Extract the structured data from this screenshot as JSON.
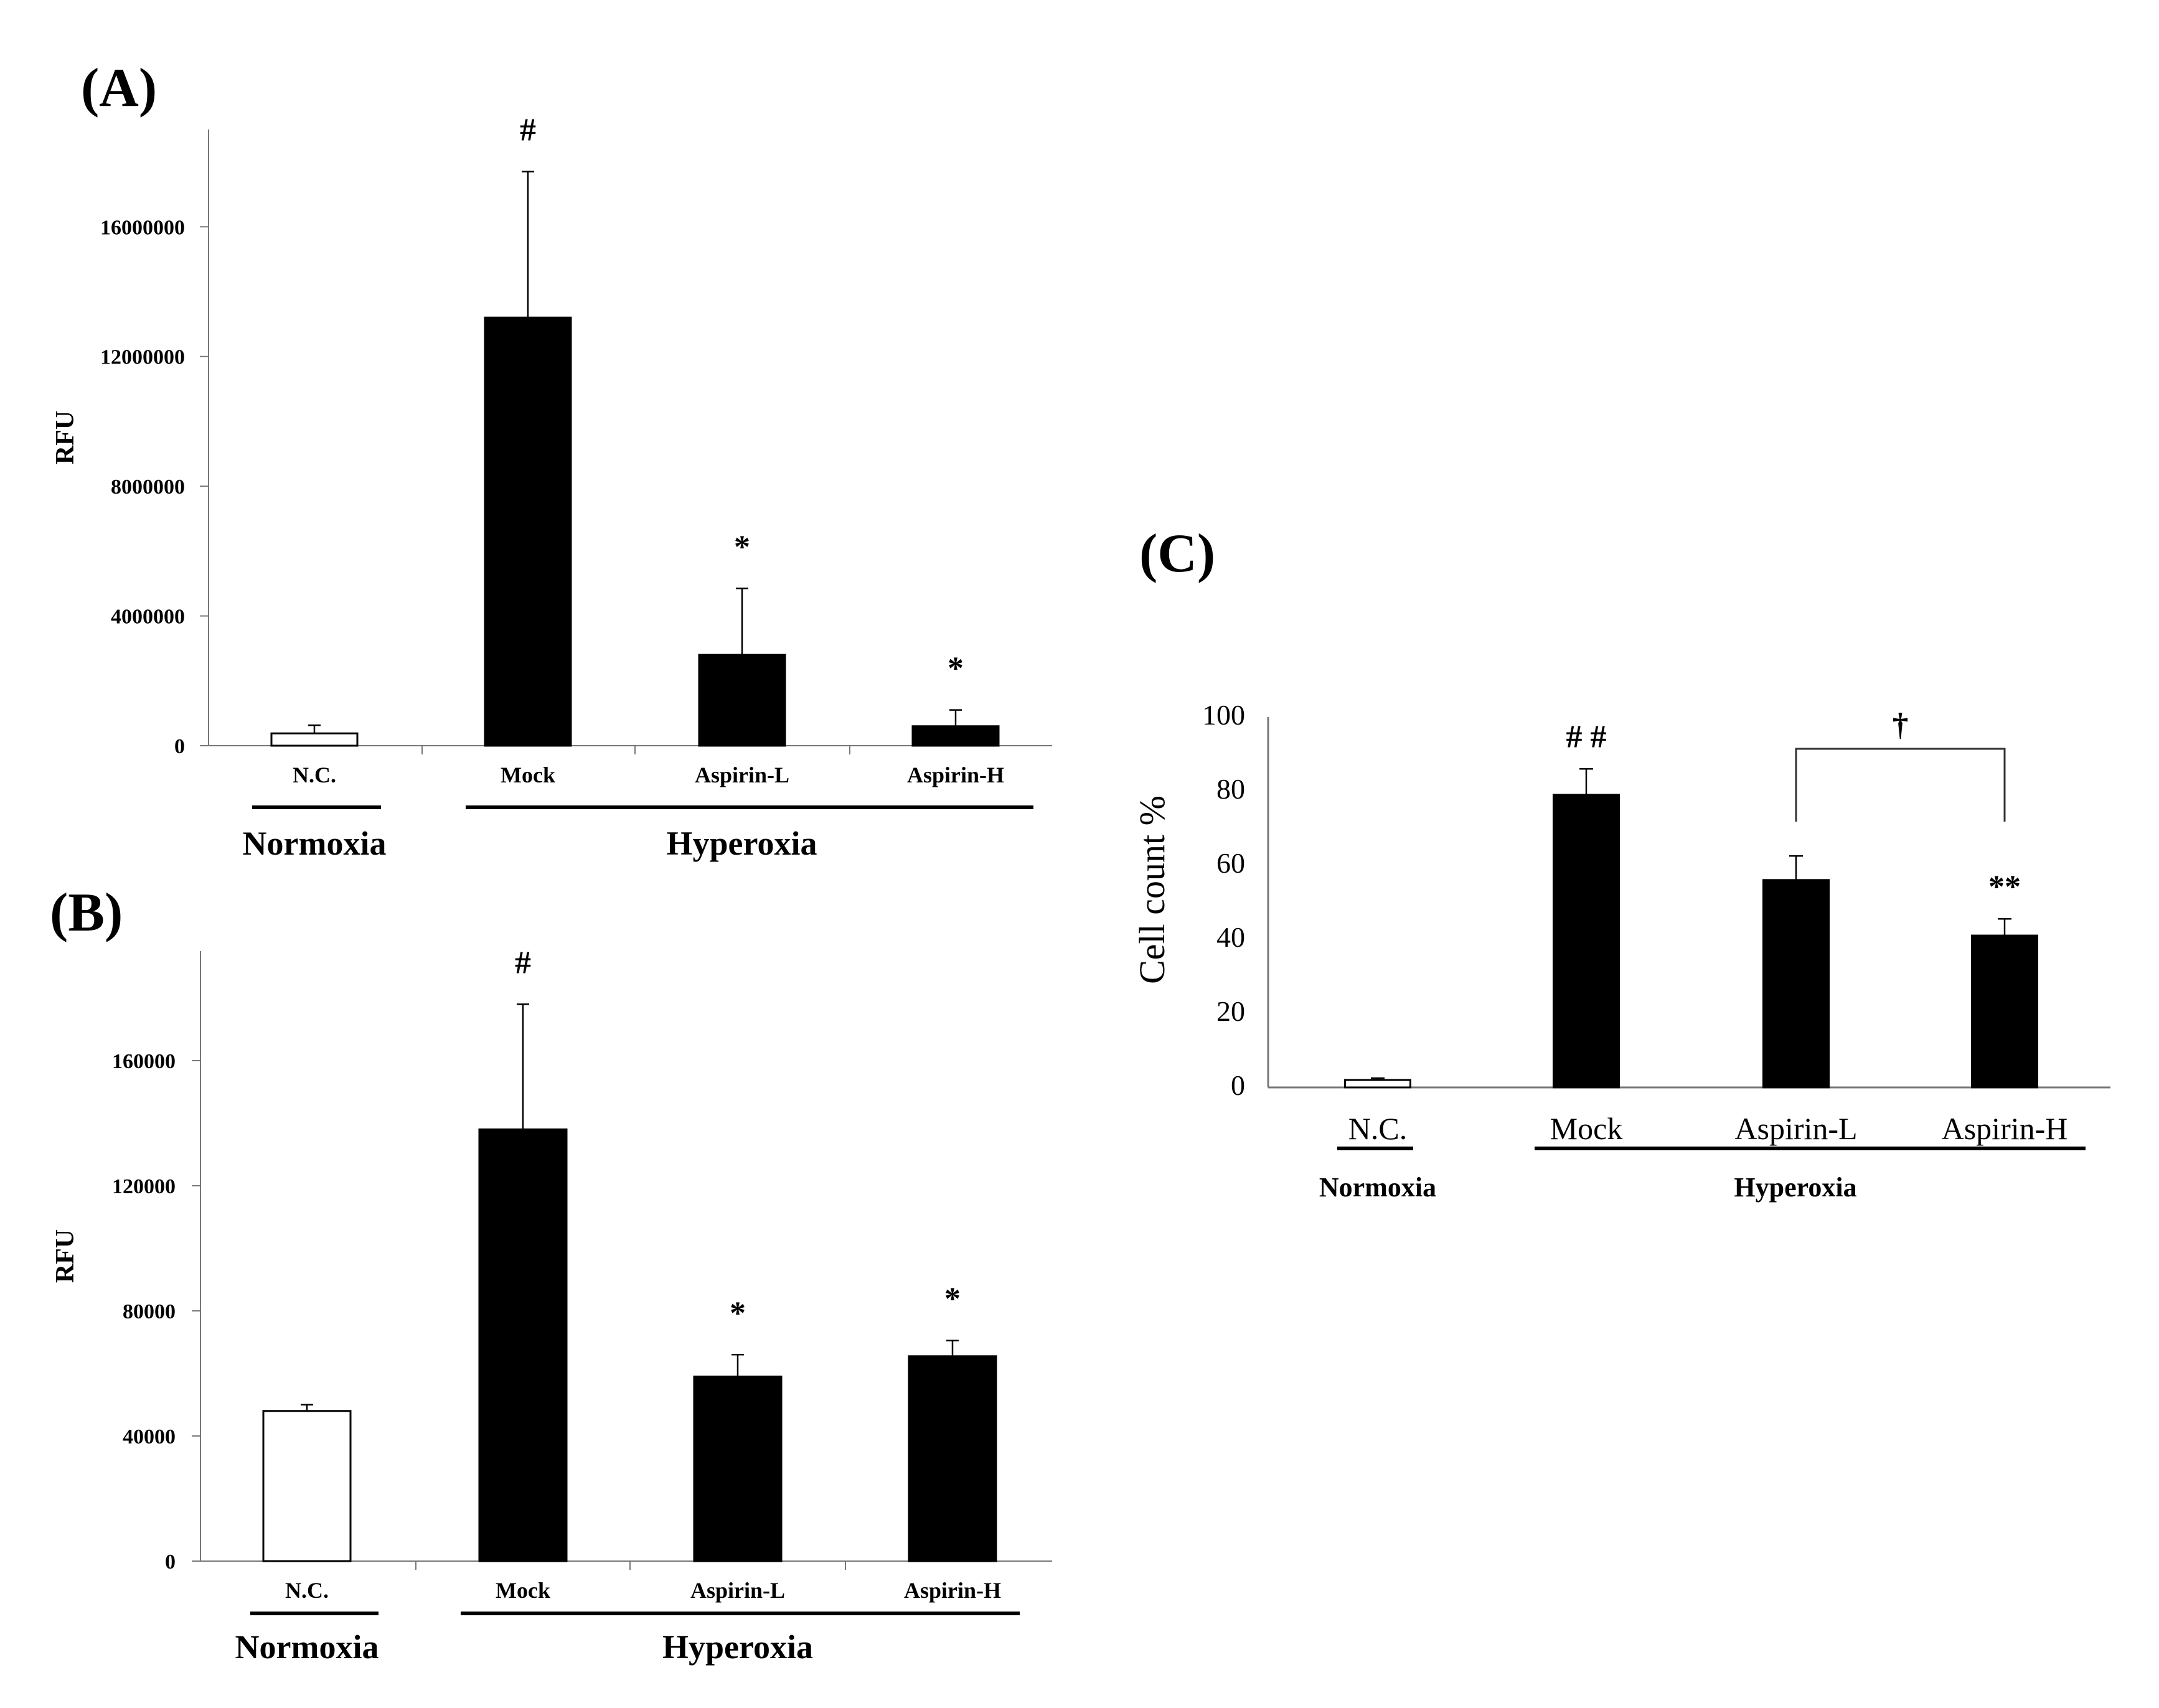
{
  "chart_data": [
    {
      "id": "A",
      "panel_label": "(A)",
      "type": "bar",
      "ylabel": "RFU",
      "ylim": [
        0,
        19000000
      ],
      "yticks": [
        0,
        4000000,
        8000000,
        12000000,
        16000000
      ],
      "ytick_labels": [
        "0",
        "4000000",
        "8000000",
        "12000000",
        "16000000"
      ],
      "categories": [
        "N.C.",
        "Mock",
        "Aspirin-L",
        "Aspirin-H"
      ],
      "values": [
        380000,
        13200000,
        2800000,
        600000
      ],
      "errors": [
        250000,
        4500000,
        2050000,
        500000
      ],
      "fills": [
        "#ffffff",
        "#000000",
        "#000000",
        "#000000"
      ],
      "annotations": [
        "",
        "#",
        "*",
        "*"
      ],
      "groups": [
        {
          "label": "Normoxia",
          "span": [
            0,
            0
          ]
        },
        {
          "label": "Hyperoxia",
          "span": [
            1,
            3
          ]
        }
      ]
    },
    {
      "id": "B",
      "panel_label": "(B)",
      "type": "bar",
      "ylabel": "RFU",
      "ylim": [
        0,
        195000
      ],
      "yticks": [
        0,
        40000,
        80000,
        120000,
        160000
      ],
      "ytick_labels": [
        "0",
        "40000",
        "80000",
        "120000",
        "160000"
      ],
      "categories": [
        "N.C.",
        "Mock",
        "Aspirin-L",
        "Aspirin-H"
      ],
      "values": [
        48000,
        138000,
        59000,
        65500
      ],
      "errors": [
        2000,
        40000,
        7000,
        5000
      ],
      "fills": [
        "#ffffff",
        "#000000",
        "#000000",
        "#000000"
      ],
      "annotations": [
        "",
        "#",
        "*",
        "*"
      ],
      "groups": [
        {
          "label": "Normoxia",
          "span": [
            0,
            0
          ]
        },
        {
          "label": "Hyperoxia",
          "span": [
            1,
            3
          ]
        }
      ]
    },
    {
      "id": "C",
      "panel_label": "(C)",
      "type": "bar",
      "ylabel": "Cell count %",
      "ylim": [
        0,
        100
      ],
      "yticks": [
        0,
        20,
        40,
        60,
        80,
        100
      ],
      "ytick_labels": [
        "0",
        "20",
        "40",
        "60",
        "80",
        "100"
      ],
      "categories": [
        "N.C.",
        "Mock",
        "Aspirin-L",
        "Aspirin-H"
      ],
      "values": [
        2,
        79,
        56,
        41
      ],
      "errors": [
        0.5,
        7,
        6.5,
        4.5
      ],
      "fills": [
        "#ffffff",
        "#000000",
        "#000000",
        "#000000"
      ],
      "annotations": [
        "",
        "# #",
        "",
        "**"
      ],
      "bracket": {
        "from": 2,
        "to": 3,
        "label": "†"
      },
      "groups": [
        {
          "label": "Normoxia",
          "span": [
            0,
            0
          ]
        },
        {
          "label": "Hyperoxia",
          "span": [
            1,
            3
          ]
        }
      ]
    }
  ]
}
